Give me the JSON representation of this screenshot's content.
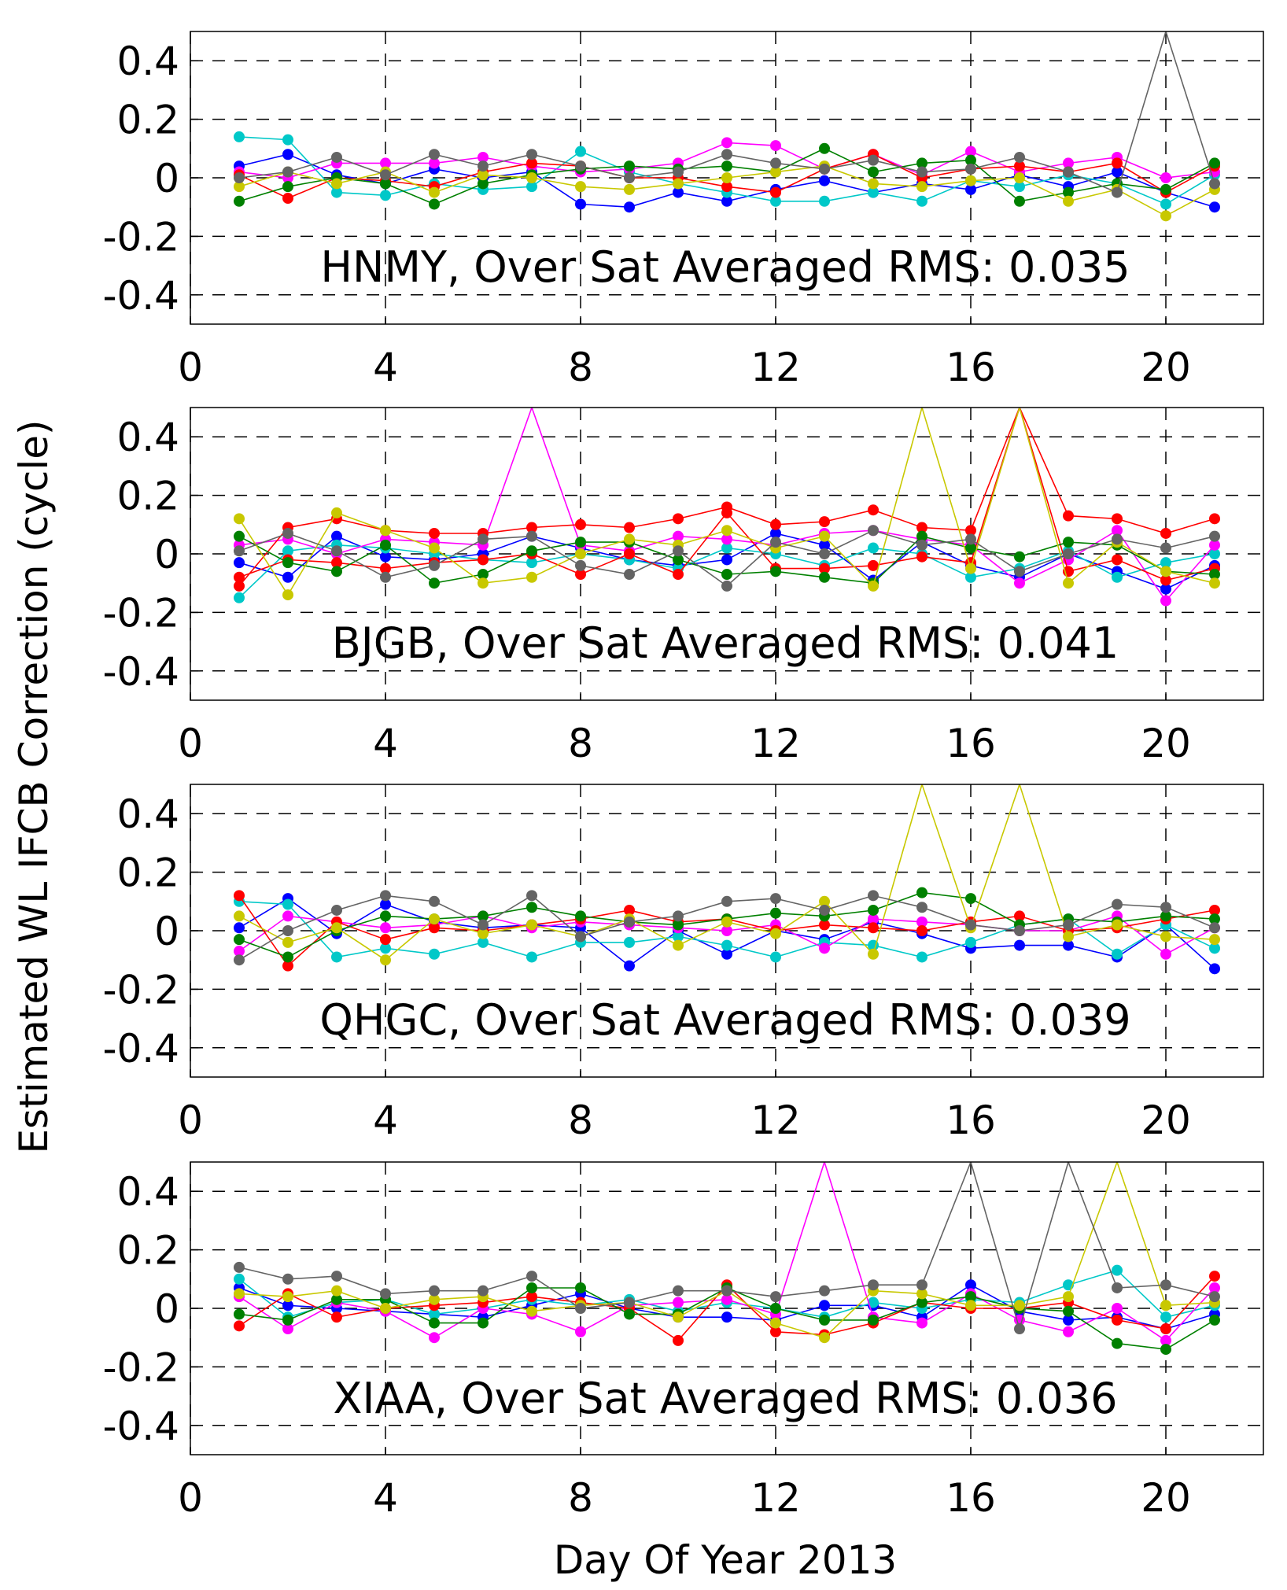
{
  "chart_data": [
    {
      "type": "line",
      "station": "HNMY",
      "annotation": "HNMY, Over Sat Averaged RMS: 0.035",
      "xlim": [
        0,
        22
      ],
      "ylim": [
        -0.5,
        0.5
      ],
      "x_ticks": [
        "0",
        "4",
        "8",
        "12",
        "16",
        "20"
      ],
      "y_ticks": [
        "0.4",
        "0.2",
        "0",
        "-0.2",
        "-0.4"
      ],
      "grid": true,
      "series": [
        {
          "name": "blue",
          "color": "#0000ff",
          "values": [
            0.04,
            0.08,
            0.01,
            -0.02,
            0.03,
            0.0,
            0.02,
            -0.09,
            -0.1,
            -0.05,
            -0.08,
            -0.04,
            -0.01,
            -0.05,
            -0.02,
            -0.04,
            0.01,
            -0.03,
            0.02,
            -0.05,
            -0.1
          ]
        },
        {
          "name": "cyan",
          "color": "#00c8c8",
          "values": [
            0.14,
            0.13,
            -0.05,
            -0.06,
            -0.02,
            -0.04,
            -0.03,
            0.09,
            0.02,
            -0.02,
            -0.05,
            -0.08,
            -0.08,
            -0.05,
            -0.08,
            -0.01,
            -0.03,
            0.01,
            -0.02,
            -0.09,
            0.01
          ]
        },
        {
          "name": "magenta",
          "color": "#ff00ff",
          "values": [
            0.02,
            0.0,
            0.05,
            0.05,
            0.05,
            0.07,
            0.04,
            0.02,
            0.03,
            0.05,
            0.12,
            0.11,
            0.03,
            0.08,
            0.01,
            0.09,
            0.02,
            0.05,
            0.07,
            0.0,
            0.02
          ]
        },
        {
          "name": "red",
          "color": "#ff0000",
          "values": [
            0.01,
            -0.07,
            0.0,
            -0.01,
            -0.03,
            0.02,
            0.05,
            0.04,
            0.0,
            0.0,
            -0.03,
            -0.05,
            0.03,
            0.08,
            0.0,
            0.03,
            0.04,
            0.02,
            0.05,
            -0.05,
            0.04
          ]
        },
        {
          "name": "green",
          "color": "#008000",
          "values": [
            -0.08,
            -0.03,
            0.0,
            -0.02,
            -0.09,
            -0.02,
            0.01,
            0.03,
            0.04,
            0.03,
            0.04,
            0.02,
            0.1,
            0.02,
            0.05,
            0.06,
            -0.08,
            -0.05,
            -0.02,
            -0.04,
            0.05
          ]
        },
        {
          "name": "olive",
          "color": "#c8c800",
          "values": [
            -0.03,
            0.02,
            -0.02,
            0.02,
            -0.05,
            0.01,
            0.0,
            -0.03,
            -0.04,
            -0.02,
            0.0,
            0.02,
            0.04,
            -0.02,
            -0.03,
            -0.01,
            0.0,
            -0.08,
            -0.04,
            -0.13,
            -0.04
          ]
        },
        {
          "name": "gray",
          "color": "#646464",
          "values": [
            0.0,
            0.02,
            0.07,
            0.01,
            0.08,
            0.04,
            0.08,
            0.04,
            0.0,
            0.02,
            0.08,
            0.05,
            0.03,
            0.06,
            0.02,
            0.03,
            0.07,
            0.02,
            -0.05,
            0.5,
            -0.02
          ]
        }
      ]
    },
    {
      "type": "line",
      "station": "BJGB",
      "annotation": "BJGB, Over Sat Averaged RMS: 0.041",
      "xlim": [
        0,
        22
      ],
      "ylim": [
        -0.5,
        0.5
      ],
      "x_ticks": [
        "0",
        "4",
        "8",
        "12",
        "16",
        "20"
      ],
      "y_ticks": [
        "0.4",
        "0.2",
        "0",
        "-0.2",
        "-0.4"
      ],
      "grid": true,
      "series": [
        {
          "name": "blue",
          "color": "#0000ff",
          "values": [
            -0.03,
            -0.08,
            0.06,
            -0.01,
            -0.02,
            0.0,
            0.06,
            0.02,
            -0.02,
            -0.04,
            -0.02,
            0.07,
            0.03,
            -0.09,
            0.04,
            -0.04,
            -0.08,
            0.0,
            -0.06,
            -0.12,
            -0.04
          ]
        },
        {
          "name": "cyan",
          "color": "#00c8c8",
          "values": [
            -0.15,
            0.01,
            0.03,
            0.02,
            0.0,
            -0.02,
            -0.03,
            0.0,
            -0.02,
            -0.05,
            0.02,
            0.0,
            -0.04,
            0.02,
            0.0,
            -0.08,
            -0.05,
            0.01,
            -0.08,
            -0.03,
            0.0
          ]
        },
        {
          "name": "magenta",
          "color": "#ff00ff",
          "values": [
            0.03,
            0.05,
            0.0,
            0.05,
            0.04,
            0.03,
            0.5,
            0.03,
            0.01,
            0.06,
            0.05,
            0.03,
            0.07,
            0.08,
            0.05,
            0.03,
            -0.1,
            -0.02,
            0.08,
            -0.16,
            0.03
          ]
        },
        {
          "name": "red",
          "color": "#ff0000",
          "values": [
            -0.11,
            0.09,
            0.12,
            0.08,
            0.07,
            0.07,
            0.09,
            0.1,
            0.09,
            0.12,
            0.16,
            0.1,
            0.11,
            0.15,
            0.09,
            0.08,
            0.5,
            0.13,
            0.12,
            0.07,
            0.12
          ]
        },
        {
          "name": "red2",
          "color": "#ff0000",
          "values": [
            -0.08,
            -0.02,
            -0.03,
            -0.05,
            -0.03,
            -0.02,
            0.0,
            -0.07,
            0.0,
            -0.07,
            0.14,
            -0.05,
            -0.05,
            -0.04,
            -0.01,
            -0.03,
            0.5,
            -0.06,
            -0.02,
            -0.09,
            -0.05
          ]
        },
        {
          "name": "green",
          "color": "#008000",
          "values": [
            0.06,
            -0.03,
            -0.06,
            0.03,
            -0.1,
            -0.07,
            0.01,
            0.04,
            0.04,
            -0.02,
            -0.07,
            -0.06,
            -0.08,
            -0.1,
            0.06,
            0.02,
            -0.01,
            0.04,
            0.03,
            -0.06,
            -0.07
          ]
        },
        {
          "name": "olive",
          "color": "#c8c800",
          "values": [
            0.12,
            -0.14,
            0.14,
            0.08,
            0.02,
            -0.1,
            -0.08,
            0.0,
            0.05,
            0.03,
            0.08,
            0.02,
            0.06,
            -0.11,
            0.5,
            -0.05,
            0.5,
            -0.1,
            0.04,
            -0.06,
            -0.1
          ]
        },
        {
          "name": "gray",
          "color": "#646464",
          "values": [
            0.01,
            0.07,
            0.01,
            -0.08,
            -0.04,
            0.05,
            0.06,
            -0.04,
            -0.07,
            0.01,
            -0.11,
            0.04,
            0.0,
            0.08,
            0.03,
            0.05,
            -0.06,
            0.0,
            0.05,
            0.02,
            0.06
          ]
        }
      ]
    },
    {
      "type": "line",
      "station": "QHGC",
      "annotation": "QHGC, Over Sat Averaged RMS: 0.039",
      "xlim": [
        0,
        22
      ],
      "ylim": [
        -0.5,
        0.5
      ],
      "x_ticks": [
        "0",
        "4",
        "8",
        "12",
        "16",
        "20"
      ],
      "y_ticks": [
        "0.4",
        "0.2",
        "0",
        "-0.2",
        "-0.4"
      ],
      "grid": true,
      "series": [
        {
          "name": "blue",
          "color": "#0000ff",
          "values": [
            0.01,
            0.11,
            -0.01,
            0.09,
            0.03,
            0.01,
            0.02,
            0.01,
            -0.12,
            0.0,
            -0.08,
            0.0,
            -0.03,
            0.03,
            -0.01,
            -0.06,
            -0.05,
            -0.05,
            -0.09,
            0.02,
            -0.13
          ]
        },
        {
          "name": "cyan",
          "color": "#00c8c8",
          "values": [
            0.1,
            0.09,
            -0.09,
            -0.06,
            -0.08,
            -0.04,
            -0.09,
            -0.04,
            -0.04,
            -0.02,
            -0.05,
            -0.09,
            -0.04,
            -0.05,
            -0.09,
            -0.04,
            0.02,
            0.04,
            -0.08,
            0.02,
            -0.06
          ]
        },
        {
          "name": "magenta",
          "color": "#ff00ff",
          "values": [
            -0.07,
            0.05,
            0.03,
            0.01,
            0.02,
            0.05,
            0.01,
            0.03,
            0.02,
            0.01,
            0.0,
            0.02,
            -0.06,
            0.04,
            0.03,
            0.02,
            0.0,
            0.0,
            0.05,
            -0.08,
            0.01
          ]
        },
        {
          "name": "red",
          "color": "#ff0000",
          "values": [
            0.12,
            -0.12,
            0.03,
            -0.03,
            0.01,
            0.0,
            0.02,
            0.04,
            0.07,
            0.03,
            0.04,
            0.0,
            0.02,
            0.01,
            0.0,
            0.03,
            0.05,
            0.0,
            0.01,
            0.04,
            0.07
          ]
        },
        {
          "name": "green",
          "color": "#008000",
          "values": [
            -0.03,
            -0.09,
            0.0,
            0.05,
            0.04,
            0.05,
            0.08,
            0.05,
            0.03,
            0.02,
            0.04,
            0.06,
            0.05,
            0.07,
            0.13,
            0.11,
            0.02,
            0.04,
            0.03,
            0.05,
            0.04
          ]
        },
        {
          "name": "olive",
          "color": "#c8c800",
          "values": [
            0.05,
            -0.04,
            0.01,
            -0.1,
            0.04,
            -0.01,
            0.02,
            -0.02,
            0.04,
            -0.05,
            0.03,
            -0.01,
            0.1,
            -0.08,
            0.5,
            0.01,
            0.5,
            -0.02,
            0.02,
            -0.02,
            -0.03
          ]
        },
        {
          "name": "gray",
          "color": "#646464",
          "values": [
            -0.1,
            0.0,
            0.07,
            0.12,
            0.1,
            0.02,
            0.12,
            -0.02,
            0.03,
            0.05,
            0.1,
            0.11,
            0.07,
            0.12,
            0.08,
            0.02,
            0.0,
            0.02,
            0.09,
            0.08,
            0.01
          ]
        }
      ]
    },
    {
      "type": "line",
      "station": "XIAA",
      "annotation": "XIAA, Over Sat Averaged RMS: 0.036",
      "xlim": [
        0,
        22
      ],
      "ylim": [
        -0.5,
        0.5
      ],
      "x_ticks": [
        "0",
        "4",
        "8",
        "12",
        "16",
        "20"
      ],
      "y_ticks": [
        "0.4",
        "0.2",
        "0",
        "-0.2",
        "-0.4"
      ],
      "grid": true,
      "series": [
        {
          "name": "blue",
          "color": "#0000ff",
          "values": [
            0.07,
            0.01,
            0.0,
            -0.01,
            -0.02,
            -0.03,
            0.01,
            0.05,
            0.0,
            -0.03,
            -0.03,
            -0.04,
            0.01,
            0.01,
            -0.03,
            0.08,
            -0.01,
            -0.04,
            -0.03,
            -0.07,
            -0.02
          ]
        },
        {
          "name": "cyan",
          "color": "#00c8c8",
          "values": [
            0.1,
            -0.03,
            0.02,
            0.03,
            -0.02,
            0.0,
            0.03,
            0.01,
            0.03,
            -0.01,
            0.02,
            0.0,
            -0.03,
            0.02,
            0.0,
            0.03,
            0.02,
            0.08,
            0.13,
            -0.03,
            0.01
          ]
        },
        {
          "name": "magenta",
          "color": "#ff00ff",
          "values": [
            0.04,
            -0.07,
            0.02,
            -0.01,
            -0.1,
            0.0,
            -0.02,
            -0.08,
            0.01,
            0.02,
            0.03,
            -0.02,
            0.5,
            -0.03,
            -0.05,
            0.05,
            -0.04,
            -0.08,
            0.0,
            -0.11,
            0.07
          ]
        },
        {
          "name": "red",
          "color": "#ff0000",
          "values": [
            -0.06,
            0.05,
            -0.03,
            0.0,
            0.01,
            0.02,
            0.04,
            0.02,
            0.0,
            -0.11,
            0.08,
            -0.08,
            -0.09,
            -0.05,
            0.02,
            0.0,
            0.0,
            0.02,
            -0.04,
            -0.07,
            0.11
          ]
        },
        {
          "name": "green",
          "color": "#008000",
          "values": [
            -0.02,
            -0.04,
            0.03,
            0.03,
            -0.05,
            -0.05,
            0.07,
            0.07,
            -0.02,
            -0.02,
            0.07,
            0.0,
            -0.04,
            -0.04,
            0.02,
            0.04,
            0.0,
            -0.01,
            -0.12,
            -0.14,
            -0.04
          ]
        },
        {
          "name": "olive",
          "color": "#c8c800",
          "values": [
            0.05,
            0.04,
            0.06,
            0.0,
            0.03,
            0.04,
            -0.01,
            0.01,
            0.02,
            -0.03,
            0.06,
            -0.05,
            -0.1,
            0.06,
            0.05,
            0.01,
            0.01,
            0.04,
            0.5,
            0.01,
            0.02
          ]
        },
        {
          "name": "gray",
          "color": "#646464",
          "values": [
            0.14,
            0.1,
            0.11,
            0.05,
            0.06,
            0.06,
            0.11,
            0.0,
            0.02,
            0.06,
            0.06,
            0.04,
            0.06,
            0.08,
            0.08,
            0.5,
            -0.07,
            0.5,
            0.07,
            0.08,
            0.04
          ]
        }
      ]
    }
  ],
  "figure": {
    "ylabel": "Estimated WL IFCB Correction (cycle)",
    "xlabel": "Day Of Year 2013"
  }
}
